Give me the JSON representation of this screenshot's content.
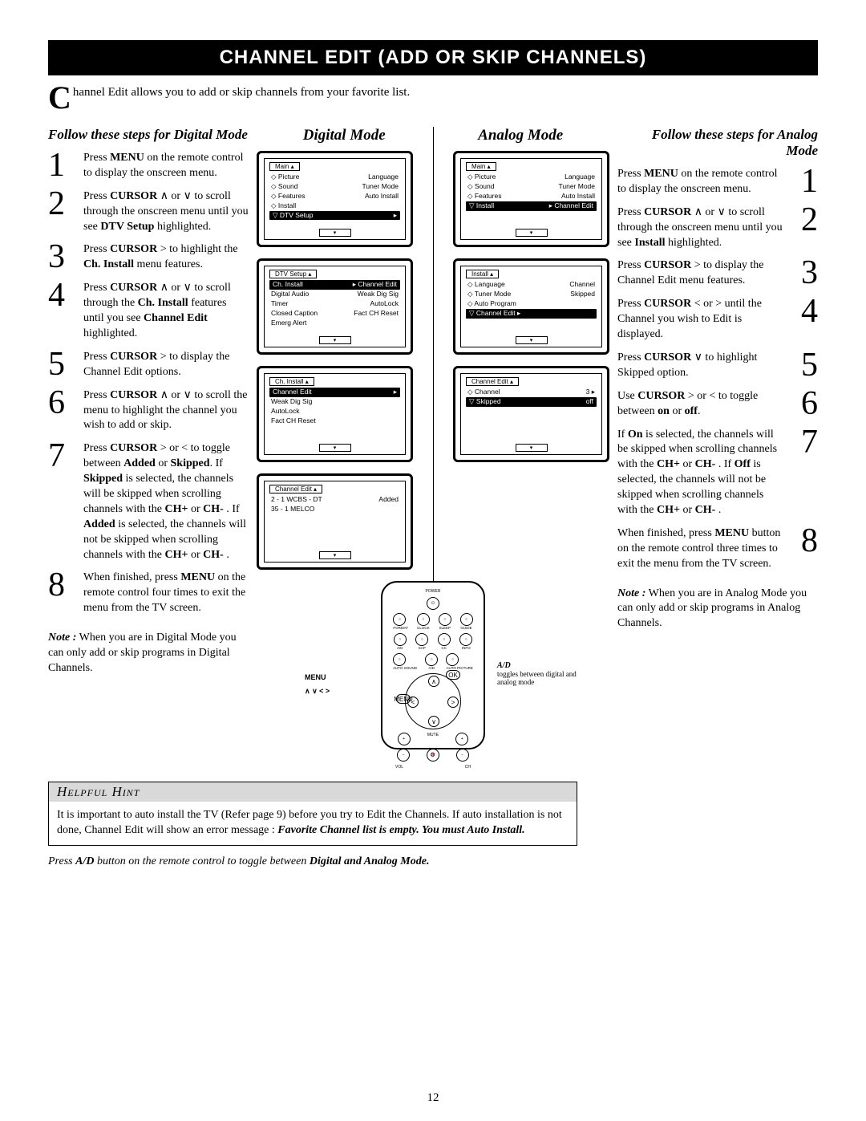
{
  "title_band": "CHANNEL EDIT (ADD OR SKIP CHANNELS)",
  "intro_cap": "C",
  "intro_text": "hannel Edit allows you to add or skip channels from your favorite list.",
  "digital_header": "Follow these steps for Digital Mode",
  "analog_header": "Follow these steps for Analog Mode",
  "mode_titles": {
    "left": "Digital Mode",
    "right": "Analog Mode"
  },
  "digital_steps": [
    {
      "n": "1",
      "html": "Press <b>MENU</b> on the remote  control to display the onscreen menu."
    },
    {
      "n": "2",
      "html": "Press <b>CURSOR</b> ∧ or ∨ to scroll through the onscreen menu until you see <b>DTV Setup</b> highlighted."
    },
    {
      "n": "3",
      "html": "Press <b>CURSOR</b>  > to highlight the <b>Ch. Install</b> menu features."
    },
    {
      "n": "4",
      "html": "Press <b>CURSOR</b> ∧ or ∨ to scroll through the <b>Ch. Install</b> features until you see <b>Channel Edit</b> highlighted."
    },
    {
      "n": "5",
      "html": "Press <b>CURSOR</b> >  to display the Channel Edit options."
    },
    {
      "n": "6",
      "html": "Press <b>CURSOR</b> ∧ or ∨ to scroll the menu to highlight the channel you wish to add or skip."
    },
    {
      "n": "7",
      "html": "Press <b>CURSOR</b>  > or < to toggle between <b>Added</b> or <b>Skipped</b>.  If <b>Skipped</b> is selected,  the channels will be skipped when scrolling channels with the <b>CH+</b> or <b>CH-</b> .  If <b>Added</b> is selected, the channels will not be skipped when scrolling channels with the <b>CH+</b> or <b>CH-</b> ."
    },
    {
      "n": "8",
      "html": "When finished, press <b>MENU</b> on the remote control  four times to exit the menu from the TV screen."
    }
  ],
  "digital_note": "<b><i>Note :</i></b> When you are in Digital Mode you can only add or skip programs in Digital Channels.",
  "analog_steps": [
    {
      "n": "1",
      "html": "Press <b>MENU</b> on the remote  control to display the onscreen menu."
    },
    {
      "n": "2",
      "html": "Press <b>CURSOR</b> ∧ or ∨ to scroll through the onscreen menu until you see <b>Install</b> highlighted."
    },
    {
      "n": "3",
      "html": "Press <b>CURSOR</b>  > to display the Channel Edit menu features."
    },
    {
      "n": "4",
      "html": "Press <b>CURSOR</b> < or > until the Channel you wish to Edit is displayed."
    },
    {
      "n": "5",
      "html": "Press <b>CURSOR</b> ∨ to highlight Skipped option."
    },
    {
      "n": "6",
      "html": "Use <b>CURSOR</b> > or <  to toggle between <b>on</b> or <b>off</b>."
    },
    {
      "n": "7",
      "html": "If <b>On</b> is selected, the channels  will be skipped when scrolling      channels with the <b>CH+</b> or <b>CH-</b> .  If <b>Off</b> is selected, the channels will not be skipped when scrolling channels with the <b>CH+</b> or <b>CH-</b> ."
    },
    {
      "n": "8",
      "html": "When finished, press <b>MENU</b> button on the remote control three times to exit the menu from the TV screen."
    }
  ],
  "analog_note": "<b><i>Note :</i></b> When you are in Analog Mode you can only add or skip programs in Analog Channels.",
  "screens": {
    "d1_hdr": "Main",
    "d1_rows": [
      [
        "◇ Picture",
        "Language"
      ],
      [
        "◇ Sound",
        "Tuner Mode"
      ],
      [
        "◇ Features",
        "Auto Install"
      ],
      [
        "◇ Install",
        ""
      ]
    ],
    "d1_hl": [
      "▽ DTV Setup",
      "▸"
    ],
    "a1_hdr": "Main",
    "a1_rows": [
      [
        "◇ Picture",
        "Language"
      ],
      [
        "◇ Sound",
        "Tuner Mode"
      ],
      [
        "◇ Features",
        "Auto Install"
      ]
    ],
    "a1_hl": [
      "▽ Install",
      "▸   Channel Edit"
    ],
    "d2_hdr": "DTV Setup   ▴",
    "d2_hl": [
      "Ch. Install",
      "▸ Channel Edit"
    ],
    "d2_rows": [
      [
        "Digital Audio",
        "Weak Dig Sig"
      ],
      [
        "Timer",
        "AutoLock"
      ],
      [
        "Closed Caption",
        "Fact CH Reset"
      ],
      [
        "Emerg Alert",
        ""
      ]
    ],
    "a2_hdr": "Install        ▴",
    "a2_rows": [
      [
        "◇ Language",
        "Channel"
      ],
      [
        "◇ Tuner Mode",
        "Skipped"
      ],
      [
        "◇ Auto Program",
        ""
      ]
    ],
    "a2_hl": [
      "▽ Channel Edit ▸",
      ""
    ],
    "d3_hdr": "Ch. Install    ▴",
    "d3_hl": [
      "Channel Edit",
      "▸"
    ],
    "d3_rows": [
      [
        "Weak Dig Sig",
        ""
      ],
      [
        "AutoLock",
        ""
      ],
      [
        "Fact CH Reset",
        ""
      ]
    ],
    "a3_hdr": "Channel Edit  ▴",
    "a3_rows": [
      [
        "◇ Channel",
        "3  ▸"
      ]
    ],
    "a3_hl": [
      "▽ Skipped",
      "off"
    ],
    "d4_hdr": "Channel Edit  ▴",
    "d4_rows": [
      [
        "2  - 1 WCBS - DT",
        "Added"
      ],
      [
        "35 - 1 MELCO",
        ""
      ]
    ]
  },
  "remote": {
    "menu_lbl": "MENU",
    "cursor_lbl": "∧ ∨ < >",
    "ad_lbl": "A/D",
    "ad_text": "toggles between digital and analog mode",
    "power": "POWER",
    "top_row": [
      "FORMAT",
      "CLOCK",
      "SLEEP",
      "GUIDE"
    ],
    "row2": [
      "A/D",
      "SAP",
      "CC",
      "INFO"
    ],
    "row3": [
      "AUTO SOUND",
      "A/D",
      "AUTO PICTURE"
    ],
    "vol": "VOL",
    "mute": "MUTE",
    "ch": "CH",
    "ok": "OK",
    "menu": "MENU"
  },
  "hint": {
    "title": "Helpful Hint",
    "body": "It is important to auto install the TV (Refer page 9) before you try to Edit the Channels.   If auto installation is not done, Channel Edit will show an error message :  ",
    "err": "Favorite Channel list is empty. You must Auto Install.",
    "sub": "Press <b>A/D</b> button on the remote control to toggle between <b>Digital and Analog Mode.</b>"
  },
  "page": "12",
  "colors": {
    "band_bg": "#000000",
    "band_fg": "#ffffff",
    "hint_bg": "#d9d9d9"
  }
}
